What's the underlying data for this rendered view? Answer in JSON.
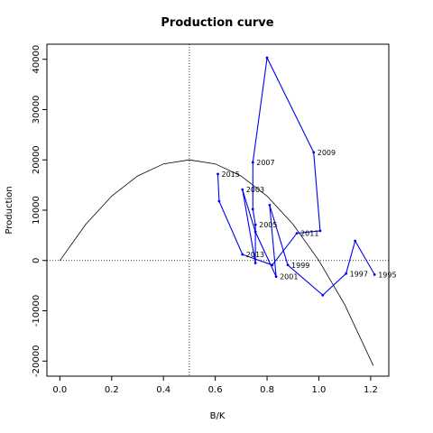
{
  "chart_data": {
    "type": "line",
    "title": "Production curve",
    "xlabel": "B/K",
    "ylabel": "Production",
    "xlim": [
      -0.05,
      1.27
    ],
    "ylim": [
      -23000,
      43000
    ],
    "x_ticks": [
      0.0,
      0.2,
      0.4,
      0.6,
      0.8,
      1.0,
      1.2
    ],
    "x_tick_labels": [
      "0.0",
      "0.2",
      "0.4",
      "0.6",
      "0.8",
      "1.0",
      "1.2"
    ],
    "y_ticks": [
      -20000,
      -10000,
      0,
      10000,
      20000,
      30000,
      40000
    ],
    "y_tick_labels": [
      "-20000",
      "-10000",
      "0",
      "10000",
      "20000",
      "30000",
      "40000"
    ],
    "grid": false,
    "reference_lines": {
      "vertical_x": 0.5,
      "horizontal_y": 0
    },
    "curve": {
      "type": "parabola",
      "points": [
        {
          "x": 0.0,
          "y": 0
        },
        {
          "x": 0.1,
          "y": 7200
        },
        {
          "x": 0.2,
          "y": 12800
        },
        {
          "x": 0.3,
          "y": 16800
        },
        {
          "x": 0.4,
          "y": 19200
        },
        {
          "x": 0.5,
          "y": 20000
        },
        {
          "x": 0.6,
          "y": 19200
        },
        {
          "x": 0.7,
          "y": 16800
        },
        {
          "x": 0.8,
          "y": 12800
        },
        {
          "x": 0.9,
          "y": 7200
        },
        {
          "x": 1.0,
          "y": 0
        },
        {
          "x": 1.1,
          "y": -8800
        },
        {
          "x": 1.21,
          "y": -20900
        }
      ]
    },
    "series": [
      {
        "color": "#0000ee",
        "points": [
          {
            "x": 1.215,
            "y": -2800,
            "label": "1995"
          },
          {
            "x": 1.14,
            "y": 3900,
            "label": ""
          },
          {
            "x": 1.105,
            "y": -2600,
            "label": "1997"
          },
          {
            "x": 1.015,
            "y": -6900,
            "label": ""
          },
          {
            "x": 0.88,
            "y": -900,
            "label": "1999"
          },
          {
            "x": 0.81,
            "y": 11000,
            "label": ""
          },
          {
            "x": 0.835,
            "y": -3200,
            "label": "2001"
          },
          {
            "x": 0.755,
            "y": 5700,
            "label": ""
          },
          {
            "x": 0.705,
            "y": 14100,
            "label": "2003"
          },
          {
            "x": 0.755,
            "y": -500,
            "label": ""
          },
          {
            "x": 0.755,
            "y": 7100,
            "label": "2005"
          },
          {
            "x": 0.745,
            "y": 10200,
            "label": ""
          },
          {
            "x": 0.745,
            "y": 19500,
            "label": "2007"
          },
          {
            "x": 0.8,
            "y": 40300,
            "label": ""
          },
          {
            "x": 0.98,
            "y": 21500,
            "label": "2009"
          },
          {
            "x": 1.005,
            "y": 5900,
            "label": ""
          },
          {
            "x": 0.915,
            "y": 5400,
            "label": "2011"
          },
          {
            "x": 0.82,
            "y": -900,
            "label": ""
          },
          {
            "x": 0.705,
            "y": 1200,
            "label": "2013"
          },
          {
            "x": 0.615,
            "y": 11800,
            "label": ""
          },
          {
            "x": 0.61,
            "y": 17200,
            "label": "2015"
          }
        ]
      }
    ]
  }
}
